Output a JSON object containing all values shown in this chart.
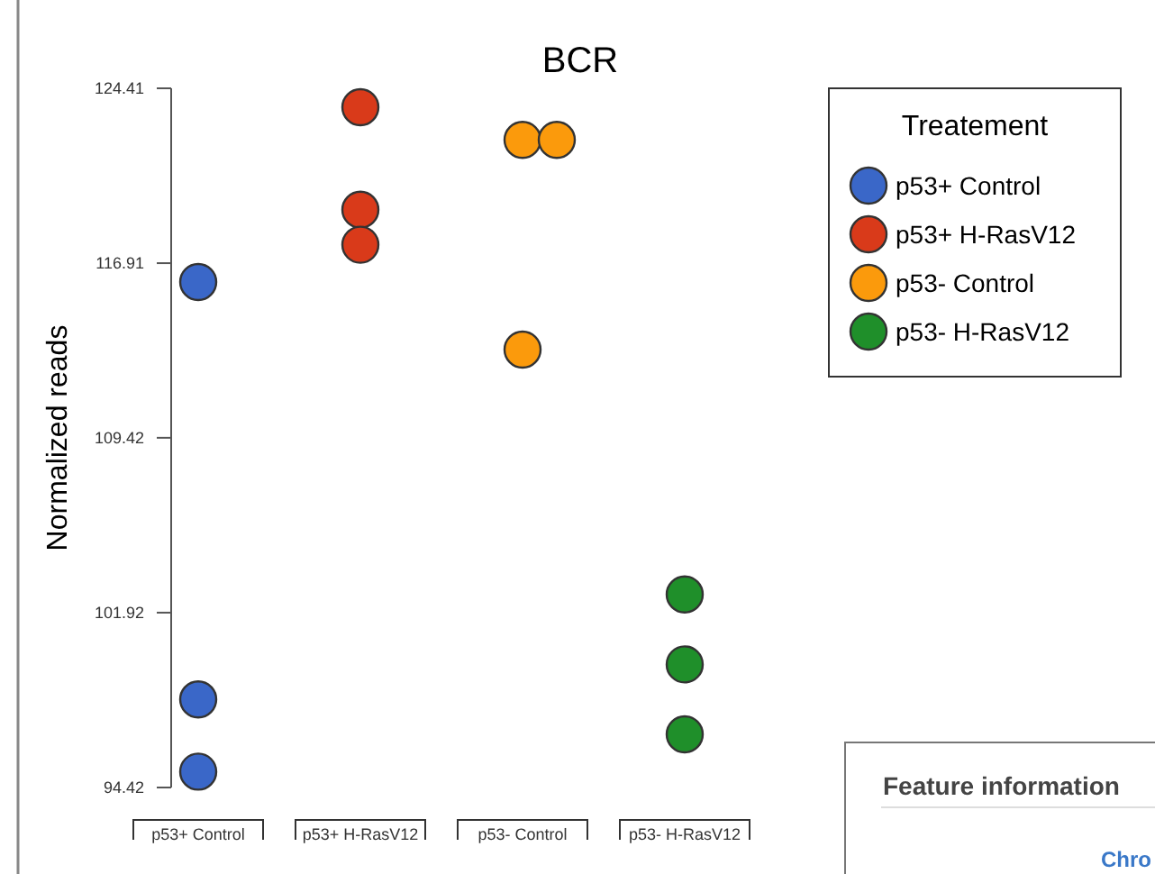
{
  "chart_data": {
    "type": "scatter",
    "title": "BCR",
    "ylabel": "Normalized reads",
    "legend_title": "Treatement",
    "legend": "top right",
    "marker": "circle",
    "grid": false,
    "categories": [
      "p53+ Control",
      "p53+ H-RasV12",
      "p53- Control",
      "p53- H-RasV12"
    ],
    "ylim": [
      94.42,
      124.41
    ],
    "yticks": [
      94.42,
      101.92,
      109.42,
      116.91,
      124.41
    ],
    "series": [
      {
        "name": "p53+ Control",
        "color": "#3a67c8",
        "x": [
          "p53+ Control",
          "p53+ Control",
          "p53+ Control"
        ],
        "values": [
          116.1,
          98.2,
          95.1
        ]
      },
      {
        "name": "p53+ H-RasV12",
        "color": "#d93a1a",
        "x": [
          "p53+ H-RasV12",
          "p53+ H-RasV12",
          "p53+ H-RasV12"
        ],
        "values": [
          123.6,
          119.2,
          117.7
        ]
      },
      {
        "name": "p53- Control",
        "color": "#fb9a0c",
        "x": [
          "p53- Control",
          "p53- Control",
          "p53- Control"
        ],
        "values": [
          122.2,
          122.2,
          113.2
        ]
      },
      {
        "name": "p53- H-RasV12",
        "color": "#1f8f2a",
        "x": [
          "p53- H-RasV12",
          "p53- H-RasV12",
          "p53- H-RasV12"
        ],
        "values": [
          102.7,
          99.7,
          96.7
        ]
      }
    ],
    "annotations": [
      "Feature information",
      "Chro"
    ]
  }
}
